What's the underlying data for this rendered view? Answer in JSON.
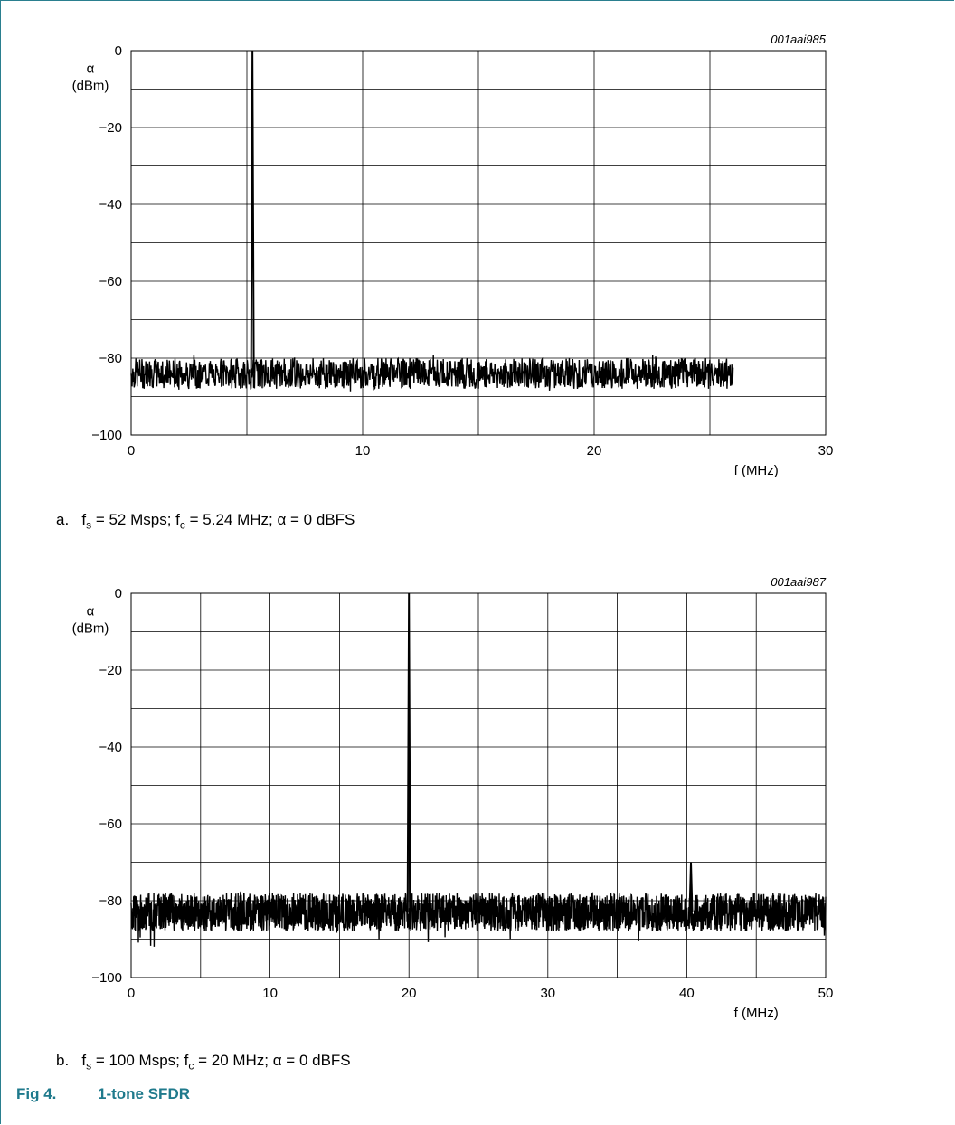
{
  "figure": {
    "number": "Fig 4.",
    "title": "1-tone SFDR"
  },
  "chart_data": [
    {
      "type": "line",
      "id": "001aai985",
      "xlabel": "f (MHz)",
      "ylabel": "α (dBm)",
      "ylabel_symbol": "α",
      "ylabel_unit": "(dBm)",
      "xlim": [
        0,
        30
      ],
      "ylim": [
        -100,
        0
      ],
      "xticks": [
        0,
        10,
        20,
        30
      ],
      "yticks": [
        0,
        -20,
        -40,
        -60,
        -80,
        -100
      ],
      "ytick_labels": [
        "0",
        "−20",
        "−40",
        "−60",
        "−80",
        "−100"
      ],
      "grid": true,
      "grid_x_step": 5,
      "grid_y_step": 10,
      "noise_floor": {
        "x_start": 0,
        "x_end": 26,
        "level_mean": -84,
        "spread": 4,
        "outlier_min": -89
      },
      "peaks": [
        {
          "x": 5.24,
          "y": 0
        }
      ],
      "caption": {
        "letter": "a.",
        "fs_label": "f",
        "fs_sub": "s",
        "fs_text": " = 52 Msps; ",
        "fc_label": "f",
        "fc_sub": "c",
        "fc_text": " = 5.24 MHz; ",
        "alpha_text": "α = 0 dBFS"
      }
    },
    {
      "type": "line",
      "id": "001aai987",
      "xlabel": "f (MHz)",
      "ylabel": "α (dBm)",
      "ylabel_symbol": "α",
      "ylabel_unit": "(dBm)",
      "xlim": [
        0,
        50
      ],
      "ylim": [
        -100,
        0
      ],
      "xticks": [
        0,
        10,
        20,
        30,
        40,
        50
      ],
      "yticks": [
        0,
        -20,
        -40,
        -60,
        -80,
        -100
      ],
      "ytick_labels": [
        "0",
        "−20",
        "−40",
        "−60",
        "−80",
        "−100"
      ],
      "grid": true,
      "grid_x_step": 5,
      "grid_y_step": 10,
      "noise_floor": {
        "x_start": 0,
        "x_end": 50,
        "level_mean": -83,
        "spread": 5,
        "outlier_min": -92
      },
      "peaks": [
        {
          "x": 20,
          "y": 0
        },
        {
          "x": 40.3,
          "y": -70
        }
      ],
      "caption": {
        "letter": "b.",
        "fs_label": "f",
        "fs_sub": "s",
        "fs_text": " = 100 Msps; ",
        "fc_label": "f",
        "fc_sub": "c",
        "fc_text": " = 20 MHz; ",
        "alpha_text": "α = 0 dBFS"
      }
    }
  ]
}
